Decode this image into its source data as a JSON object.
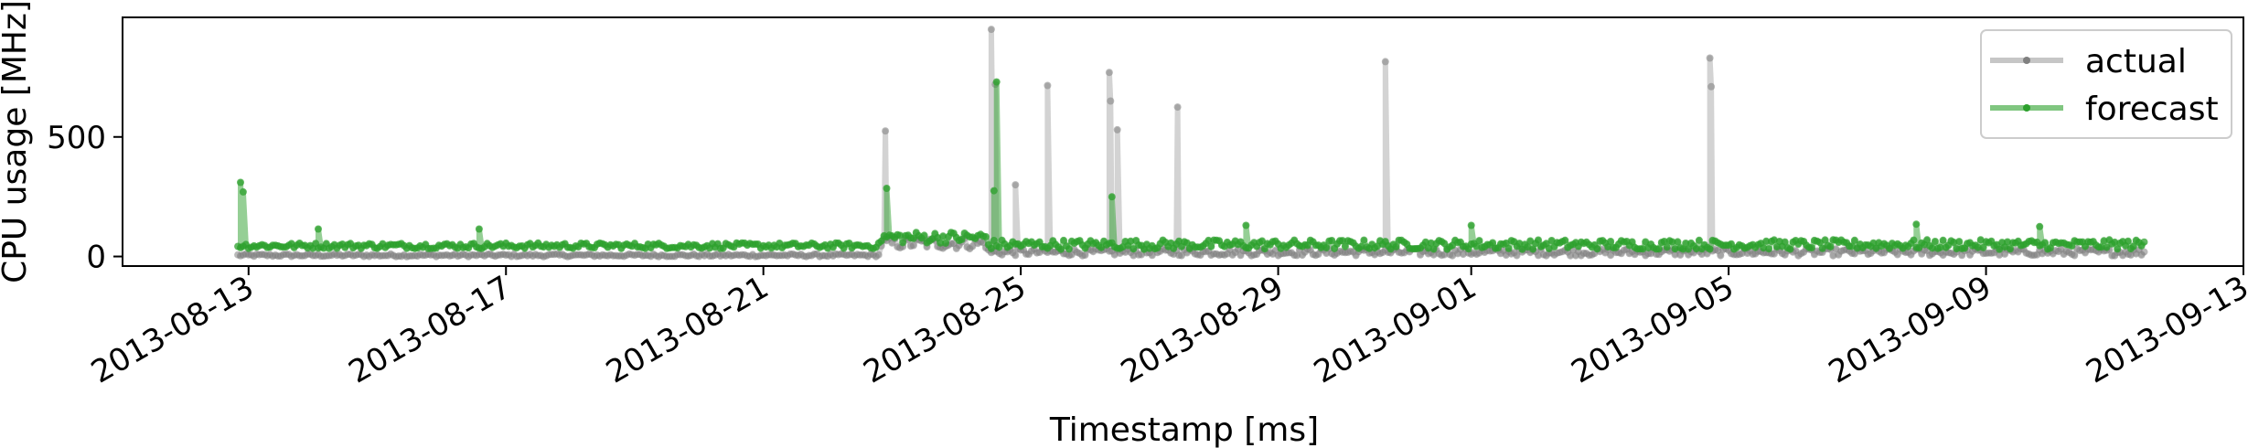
{
  "chart_data": {
    "type": "line",
    "xlabel": "Timestamp [ms]",
    "ylabel": "CPU usage [MHz]",
    "x_ticks": [
      "2013-08-13",
      "2013-08-17",
      "2013-08-21",
      "2013-08-25",
      "2013-08-29",
      "2013-09-01",
      "2013-09-05",
      "2013-09-09",
      "2013-09-13"
    ],
    "y_ticks": [
      0,
      500
    ],
    "xlim": [
      "2013-08-11T01:00",
      "2013-09-13T00:00"
    ],
    "ylim": [
      -40,
      1000
    ],
    "grid": false,
    "legend_position": "top-right",
    "series": [
      {
        "name": "actual",
        "color": "#808080",
        "line_alpha": 0.35,
        "x_range": [
          "2013-08-12T20:00",
          "2013-09-11T12:00"
        ],
        "segments": [
          {
            "start": "2013-08-12T20:00",
            "end": "2013-08-22T20:00",
            "base": 5,
            "jitter": 6
          },
          {
            "start": "2013-08-22T20:00",
            "end": "2013-08-24T12:00",
            "base": 55,
            "jitter": 25
          },
          {
            "start": "2013-08-24T12:00",
            "end": "2013-09-11T12:00",
            "base": 18,
            "jitter": 15
          }
        ],
        "spikes": [
          {
            "x": "2013-08-22T21:30",
            "y": 525
          },
          {
            "x": "2013-08-24T13:00",
            "y": 950
          },
          {
            "x": "2013-08-24T14:30",
            "y": 720
          },
          {
            "x": "2013-08-24T22:00",
            "y": 300
          },
          {
            "x": "2013-08-25T10:00",
            "y": 715
          },
          {
            "x": "2013-08-26T09:00",
            "y": 770
          },
          {
            "x": "2013-08-26T09:30",
            "y": 650
          },
          {
            "x": "2013-08-26T12:00",
            "y": 530
          },
          {
            "x": "2013-08-27T10:30",
            "y": 625
          },
          {
            "x": "2013-08-30T16:00",
            "y": 815
          },
          {
            "x": "2013-09-04T17:00",
            "y": 830
          },
          {
            "x": "2013-09-04T17:30",
            "y": 710
          }
        ]
      },
      {
        "name": "forecast",
        "color": "#2ca02c",
        "line_alpha": 0.5,
        "x_range": [
          "2013-08-12T20:00",
          "2013-09-11T12:00"
        ],
        "segments": [
          {
            "start": "2013-08-12T20:00",
            "end": "2013-08-22T20:00",
            "base": 45,
            "jitter": 12
          },
          {
            "start": "2013-08-22T20:00",
            "end": "2013-08-24T12:00",
            "base": 80,
            "jitter": 25
          },
          {
            "start": "2013-08-24T12:00",
            "end": "2013-09-11T12:00",
            "base": 50,
            "jitter": 20
          }
        ],
        "spikes": [
          {
            "x": "2013-08-12T21:00",
            "y": 310
          },
          {
            "x": "2013-08-12T22:00",
            "y": 270
          },
          {
            "x": "2013-08-14T02:00",
            "y": 115
          },
          {
            "x": "2013-08-16T14:00",
            "y": 115
          },
          {
            "x": "2013-08-22T22:00",
            "y": 285
          },
          {
            "x": "2013-08-24T15:00",
            "y": 730
          },
          {
            "x": "2013-08-24T14:00",
            "y": 275
          },
          {
            "x": "2013-08-26T10:00",
            "y": 250
          },
          {
            "x": "2013-08-28T12:00",
            "y": 130
          },
          {
            "x": "2013-09-01T00:00",
            "y": 130
          },
          {
            "x": "2013-09-07T22:00",
            "y": 135
          },
          {
            "x": "2013-09-09T20:00",
            "y": 125
          }
        ]
      }
    ]
  }
}
